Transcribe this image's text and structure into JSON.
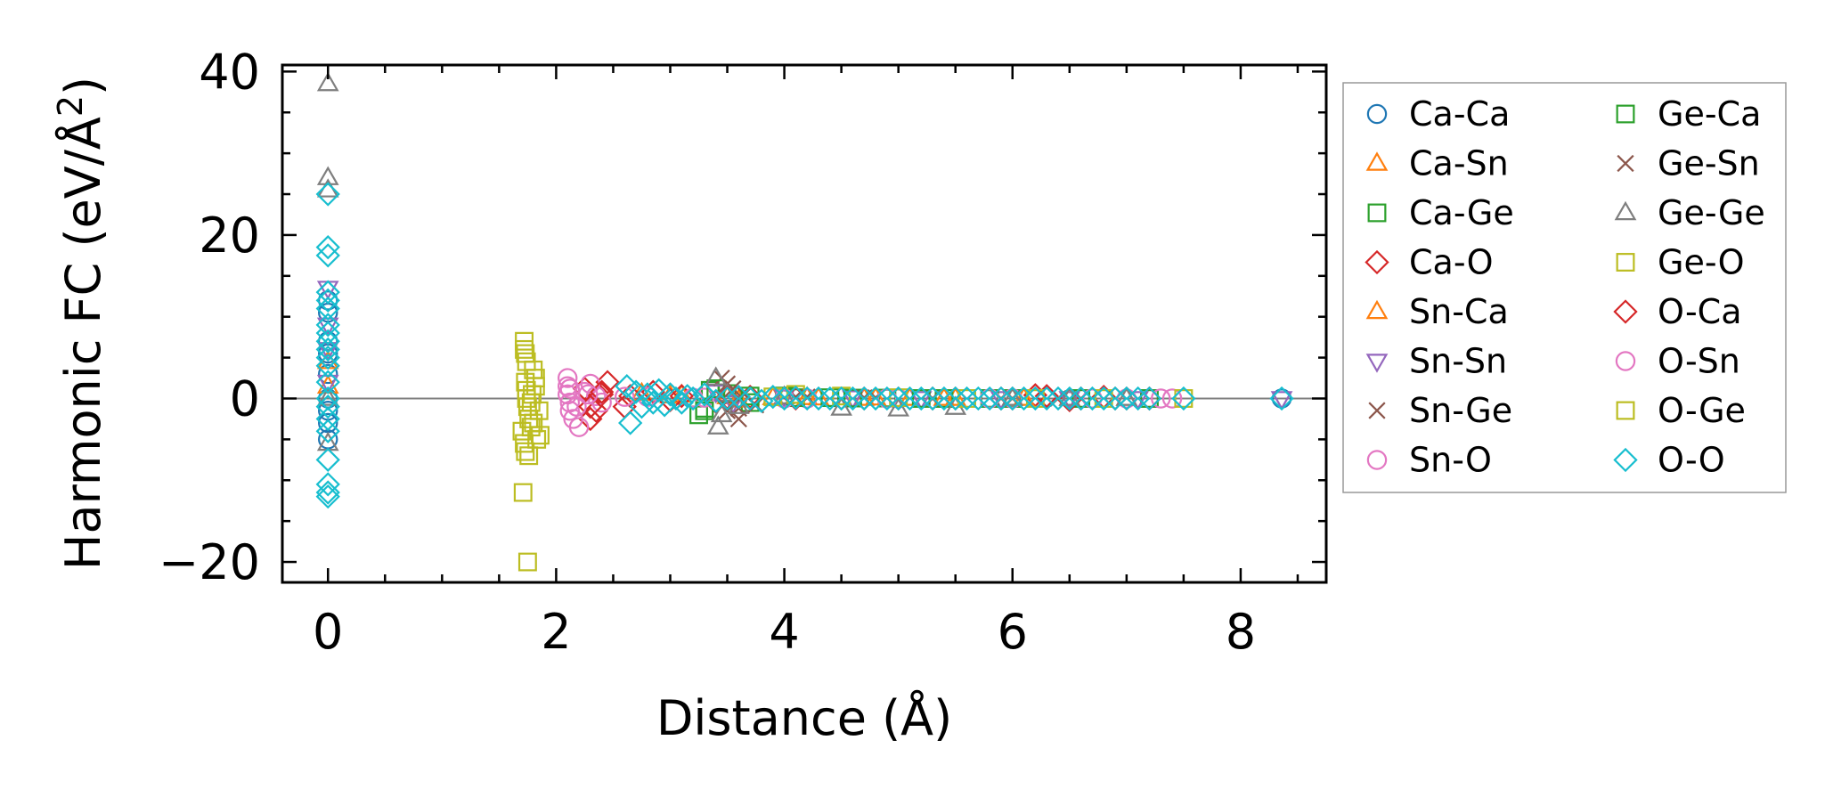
{
  "chart_data": {
    "type": "scatter",
    "title": "",
    "xlabel": "Distance (Å)",
    "ylabel": "Harmonic FC (eV/Å",
    "ylabel_sup": "2",
    "ylabel_close": ")",
    "xlim": [
      -0.4,
      8.75
    ],
    "ylim": [
      -22.5,
      40.8
    ],
    "xticks": [
      0,
      2,
      4,
      6,
      8
    ],
    "yticks": [
      -20,
      0,
      20,
      40
    ],
    "xtick_labels": [
      "0",
      "2",
      "4",
      "6",
      "8"
    ],
    "ytick_labels": [
      "−20",
      "0",
      "20",
      "40"
    ],
    "reference_line_y": 0,
    "legend_position": "outside-right",
    "series": [
      {
        "name": "Ca-Ca",
        "marker": "circle",
        "color": "#1f77b4",
        "x": [
          0,
          0,
          0,
          0,
          0,
          0,
          0,
          0,
          0,
          8.36
        ],
        "y": [
          12,
          10.5,
          7,
          5.5,
          3,
          0,
          -1.5,
          -3,
          -5,
          0
        ]
      },
      {
        "name": "Ca-Sn",
        "marker": "triangle-up",
        "color": "#ff7f0e",
        "x": [
          0,
          0,
          2.75,
          3.1,
          3.5,
          3.9,
          4.3,
          4.7,
          5.1,
          5.5,
          6.0,
          6.5,
          7.0
        ],
        "y": [
          4.5,
          1.5,
          0.6,
          0.4,
          0.2,
          0.1,
          0.05,
          0,
          0,
          0,
          0,
          0,
          0
        ]
      },
      {
        "name": "Ca-Ge",
        "marker": "square",
        "color": "#2ca02c",
        "x": [
          3.25,
          3.3,
          3.35,
          3.5,
          3.7,
          4.0,
          4.4,
          4.9,
          5.4,
          6.0,
          6.6,
          7.2
        ],
        "y": [
          -2,
          -1.2,
          1,
          0.6,
          -0.5,
          0.3,
          0.1,
          0.05,
          0,
          0,
          0,
          0
        ]
      },
      {
        "name": "Ca-O",
        "marker": "diamond",
        "color": "#d62728",
        "x": [
          2.25,
          2.3,
          2.35,
          2.4,
          2.45,
          2.6,
          2.85,
          3.1,
          3.4,
          3.7,
          4.1,
          4.5,
          5.0,
          5.5,
          6.0,
          6.2,
          6.5,
          6.8,
          7.0,
          7.2
        ],
        "y": [
          1.2,
          -2.5,
          -1.5,
          0.5,
          2,
          -1,
          0.8,
          0.3,
          -0.4,
          0.2,
          0.1,
          0,
          0,
          0,
          0,
          0.4,
          -0.2,
          0.2,
          0,
          0
        ]
      },
      {
        "name": "Sn-Ca",
        "marker": "triangle-up",
        "color": "#ff7f0e",
        "x": [
          3.0,
          3.6,
          4.2,
          4.8,
          5.4,
          6.1
        ],
        "y": [
          0.3,
          -0.2,
          0.1,
          0.05,
          0,
          0
        ]
      },
      {
        "name": "Sn-Sn",
        "marker": "triangle-down",
        "color": "#9467bd",
        "x": [
          0,
          0,
          0,
          0,
          3.4,
          3.55,
          4.0,
          4.6,
          5.2,
          5.9,
          6.5,
          7.1,
          8.36
        ],
        "y": [
          13.5,
          9,
          6,
          2,
          0.8,
          -0.5,
          0.2,
          0.1,
          0,
          0,
          0,
          0,
          0
        ]
      },
      {
        "name": "Sn-Ge",
        "marker": "x",
        "color": "#8c564b",
        "x": [
          3.45,
          3.5,
          3.55,
          3.6,
          3.65,
          3.75,
          4.2,
          4.8,
          5.3,
          5.9,
          6.4
        ],
        "y": [
          2.5,
          -1.5,
          1.2,
          -2.5,
          0.5,
          -0.8,
          0.2,
          0.1,
          0,
          0,
          0
        ]
      },
      {
        "name": "Sn-O",
        "marker": "circle",
        "color": "#e377c2",
        "x": [
          2.1,
          2.1,
          2.1,
          2.12,
          2.12,
          2.15,
          2.2,
          2.25,
          2.3,
          2.35,
          2.4,
          2.8,
          3.3,
          4.2,
          5.0,
          6.0,
          7.0,
          7.4
        ],
        "y": [
          2.5,
          1.5,
          0.5,
          -0.5,
          -1.5,
          -2.5,
          -3.5,
          0.8,
          1.8,
          0.3,
          -0.5,
          0.2,
          0.1,
          0,
          0,
          0,
          0,
          0
        ]
      },
      {
        "name": "Ge-Ca",
        "marker": "square",
        "color": "#2ca02c",
        "x": [
          3.3,
          3.4,
          3.7,
          4.1,
          4.6,
          5.2,
          5.8
        ],
        "y": [
          -1.5,
          1.2,
          0.3,
          0.1,
          0.05,
          0,
          0
        ]
      },
      {
        "name": "Ge-Sn",
        "marker": "x",
        "color": "#8c564b",
        "x": [
          3.5,
          3.6,
          4.1,
          4.7,
          5.3,
          6.0,
          6.6
        ],
        "y": [
          1.8,
          -1.2,
          0.2,
          0.1,
          0,
          0,
          0
        ]
      },
      {
        "name": "Ge-Ge",
        "marker": "triangle-up",
        "color": "#7f7f7f",
        "x": [
          0,
          0,
          0,
          0,
          0,
          3.4,
          3.42,
          3.45,
          3.5,
          3.6,
          4.0,
          4.5,
          5.0,
          5.5,
          6.0,
          6.5,
          7.0
        ],
        "y": [
          38.5,
          27,
          25.5,
          0,
          -5.5,
          2.5,
          -3.5,
          -2,
          0.5,
          -1,
          0.2,
          -1.2,
          -1.3,
          -1.1,
          0,
          0,
          0
        ]
      },
      {
        "name": "Ge-O",
        "marker": "square",
        "color": "#bcbd22",
        "x": [
          1.72,
          1.72,
          1.73,
          1.73,
          1.74,
          1.74,
          1.75,
          1.76,
          1.78,
          1.8,
          1.82,
          1.85,
          1.7,
          1.72,
          1.73,
          1.76,
          1.8,
          1.83,
          1.86,
          1.71,
          1.75,
          1.79
        ],
        "y": [
          7,
          6,
          5.5,
          2,
          1,
          0,
          -1,
          -2.5,
          -3.5,
          3.5,
          2.5,
          -1.5,
          -4,
          -5.5,
          -6.5,
          -7,
          -3,
          -5,
          -4.5,
          -11.5,
          -20,
          0.5
        ]
      },
      {
        "name": "O-Ca",
        "marker": "diamond",
        "color": "#d62728",
        "x": [
          2.3,
          2.4,
          2.65,
          3.0,
          3.5,
          4.1,
          4.7,
          5.3,
          5.9,
          6.3,
          6.6,
          6.9,
          7.2
        ],
        "y": [
          -1,
          0.8,
          0.3,
          -0.2,
          0.1,
          0,
          0,
          0,
          0,
          0.3,
          0,
          0,
          0
        ]
      },
      {
        "name": "O-Sn",
        "marker": "circle",
        "color": "#e377c2",
        "x": [
          2.12,
          2.18,
          2.28,
          2.6,
          3.2,
          4.0,
          4.9,
          5.8,
          6.7,
          7.3
        ],
        "y": [
          1.2,
          -1,
          0.5,
          0.2,
          0.1,
          0,
          0,
          0,
          0,
          0
        ]
      },
      {
        "name": "O-Ge",
        "marker": "square",
        "color": "#bcbd22",
        "x": [
          1.74,
          1.78,
          1.82,
          3.9,
          4.1,
          4.5,
          5.0,
          5.6,
          6.2,
          6.8,
          7.5
        ],
        "y": [
          4.5,
          -0.5,
          1.5,
          0.2,
          0.5,
          0.3,
          0.1,
          0,
          0,
          0,
          0
        ]
      },
      {
        "name": "O-O",
        "marker": "diamond",
        "color": "#17becf",
        "x": [
          0,
          0,
          0,
          0,
          0,
          0,
          0,
          0,
          0,
          0,
          0,
          0,
          0,
          0,
          0,
          0,
          0,
          0,
          0,
          0,
          0,
          2.62,
          2.65,
          2.7,
          2.75,
          2.8,
          2.85,
          2.9,
          2.95,
          3.0,
          3.05,
          3.1,
          3.15,
          3.2,
          3.3,
          3.4,
          3.5,
          3.6,
          3.7,
          3.8,
          3.9,
          4.0,
          4.1,
          4.2,
          4.3,
          4.4,
          4.5,
          4.6,
          4.7,
          4.8,
          4.9,
          5.0,
          5.1,
          5.2,
          5.3,
          5.4,
          5.5,
          5.6,
          5.7,
          5.8,
          5.9,
          6.0,
          6.1,
          6.2,
          6.3,
          6.4,
          6.5,
          6.6,
          6.7,
          6.8,
          6.9,
          7.0,
          7.1,
          7.2,
          7.5,
          8.36
        ],
        "y": [
          25,
          18.5,
          17.5,
          13,
          12,
          11,
          9,
          8,
          7,
          6,
          5,
          4,
          2,
          0,
          -1,
          -2.5,
          -4,
          -7.5,
          -10.5,
          -11.5,
          -12,
          1.5,
          -3,
          0.8,
          -1,
          0.5,
          -0.5,
          1,
          -0.8,
          0.5,
          0,
          -0.5,
          0.3,
          0,
          0.5,
          -0.3,
          0,
          0.2,
          0,
          -0.3,
          0.2,
          0,
          0.1,
          0,
          0,
          0,
          0,
          0,
          0,
          0,
          0,
          0,
          0,
          0,
          0,
          0,
          0,
          0,
          0,
          0,
          0,
          0,
          0,
          0,
          0,
          0,
          0,
          0,
          0,
          0,
          0,
          0,
          0,
          0,
          0,
          0
        ]
      }
    ]
  }
}
